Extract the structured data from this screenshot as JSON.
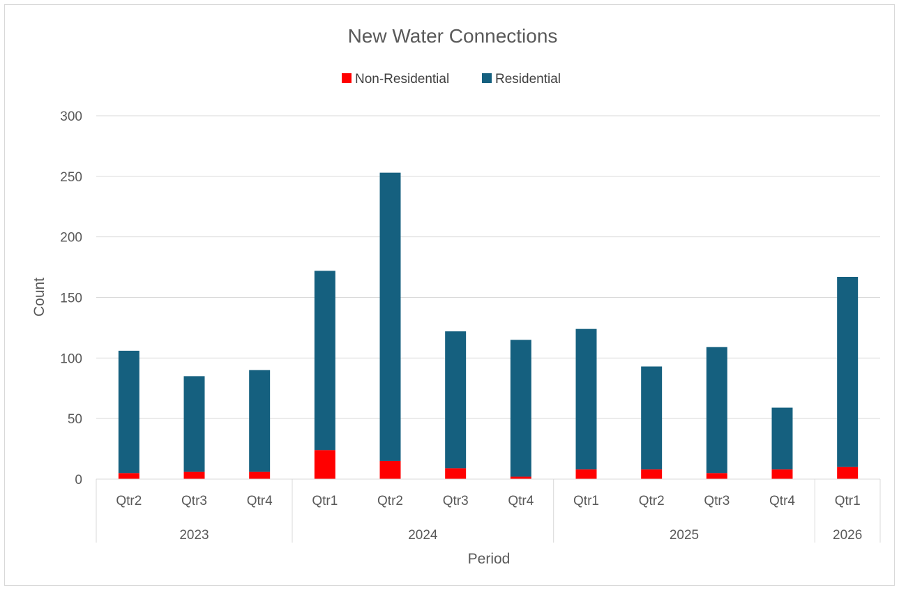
{
  "chart_data": {
    "type": "bar",
    "stacked": true,
    "title": "New Water Connections",
    "xlabel": "Period",
    "ylabel": "Count",
    "ylim": [
      0,
      300
    ],
    "yticks": [
      0,
      50,
      100,
      150,
      200,
      250,
      300
    ],
    "grid": true,
    "legend_position": "top",
    "categories": [
      "Qtr2",
      "Qtr3",
      "Qtr4",
      "Qtr1",
      "Qtr2",
      "Qtr3",
      "Qtr4",
      "Qtr1",
      "Qtr2",
      "Qtr3",
      "Qtr4",
      "Qtr1"
    ],
    "groups": [
      {
        "label": "2023",
        "count": 3
      },
      {
        "label": "2024",
        "count": 4
      },
      {
        "label": "2025",
        "count": 4
      },
      {
        "label": "2026",
        "count": 1
      }
    ],
    "series": [
      {
        "name": "Non-Residential",
        "color": "#ff0000",
        "values": [
          5,
          6,
          6,
          24,
          15,
          9,
          2,
          8,
          8,
          5,
          8,
          10
        ]
      },
      {
        "name": "Residential",
        "color": "#15607f",
        "values": [
          101,
          79,
          84,
          148,
          238,
          113,
          113,
          116,
          85,
          104,
          51,
          157
        ]
      }
    ]
  }
}
